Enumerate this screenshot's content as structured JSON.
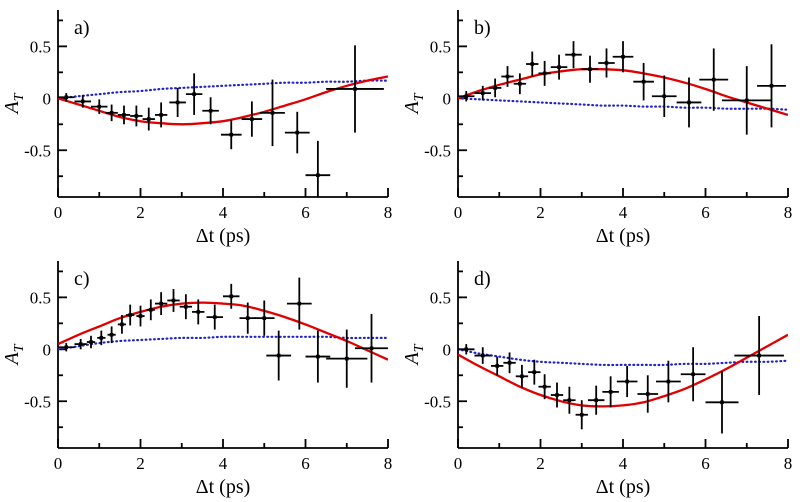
{
  "chart_data": {
    "type": "scatter",
    "title": "",
    "xlabel": "Δt (ps)",
    "ylabel_main": "A",
    "ylabel_sub": "T",
    "xlim": [
      0,
      8
    ],
    "ylim": [
      -0.95,
      0.85
    ],
    "grid": false,
    "legend": "none",
    "xticks": {
      "major": [
        0,
        2,
        4,
        6,
        8
      ],
      "minor": [
        1,
        3,
        5,
        7
      ],
      "labels": [
        "0",
        "2",
        "4",
        "6",
        "8"
      ]
    },
    "yticks": {
      "major": [
        -0.5,
        0,
        0.5
      ],
      "minor": [
        -0.75,
        -0.25,
        0.25,
        0.75
      ],
      "labels": [
        "-0.5",
        "0",
        "0.5"
      ]
    },
    "colors": {
      "data": "#000000",
      "fit": "#e00000",
      "reference": "#2222cc"
    },
    "curve_x_start": 0,
    "curve_x_step": 0.5,
    "panels": [
      {
        "id": "a",
        "label": "a)",
        "points": [
          [
            0.2,
            0.01,
            0.2,
            0.04
          ],
          [
            0.6,
            -0.03,
            0.2,
            0.06
          ],
          [
            1.0,
            -0.08,
            0.2,
            0.07
          ],
          [
            1.3,
            -0.14,
            0.15,
            0.08
          ],
          [
            1.6,
            -0.16,
            0.15,
            0.09
          ],
          [
            1.9,
            -0.17,
            0.15,
            0.1
          ],
          [
            2.2,
            -0.2,
            0.15,
            0.11
          ],
          [
            2.5,
            -0.16,
            0.15,
            0.12
          ],
          [
            2.9,
            -0.04,
            0.2,
            0.14
          ],
          [
            3.3,
            0.04,
            0.2,
            0.2
          ],
          [
            3.7,
            -0.12,
            0.2,
            0.13
          ],
          [
            4.2,
            -0.35,
            0.25,
            0.14
          ],
          [
            4.7,
            -0.2,
            0.25,
            0.17
          ],
          [
            5.2,
            -0.14,
            0.3,
            0.32
          ],
          [
            5.8,
            -0.33,
            0.3,
            0.2
          ],
          [
            6.3,
            -0.74,
            0.3,
            0.33
          ],
          [
            7.2,
            0.09,
            0.7,
            0.42
          ]
        ],
        "fit_curve": [
          0,
          -0.06,
          -0.12,
          -0.18,
          -0.22,
          -0.24,
          -0.25,
          -0.24,
          -0.22,
          -0.18,
          -0.13,
          -0.07,
          -0.01,
          0.06,
          0.12,
          0.17,
          0.21
        ],
        "reference_curve": [
          0,
          0.02,
          0.04,
          0.06,
          0.07,
          0.09,
          0.1,
          0.11,
          0.12,
          0.13,
          0.14,
          0.15,
          0.15,
          0.16,
          0.16,
          0.17,
          0.17
        ]
      },
      {
        "id": "b",
        "label": "b)",
        "points": [
          [
            0.2,
            0.02,
            0.2,
            0.05
          ],
          [
            0.6,
            0.05,
            0.2,
            0.07
          ],
          [
            0.9,
            0.1,
            0.15,
            0.09
          ],
          [
            1.2,
            0.21,
            0.15,
            0.1
          ],
          [
            1.5,
            0.14,
            0.15,
            0.1
          ],
          [
            1.8,
            0.33,
            0.15,
            0.12
          ],
          [
            2.1,
            0.24,
            0.15,
            0.12
          ],
          [
            2.45,
            0.3,
            0.2,
            0.12
          ],
          [
            2.8,
            0.42,
            0.2,
            0.13
          ],
          [
            3.2,
            0.28,
            0.2,
            0.13
          ],
          [
            3.6,
            0.34,
            0.2,
            0.14
          ],
          [
            4.0,
            0.4,
            0.25,
            0.15
          ],
          [
            4.5,
            0.16,
            0.25,
            0.18
          ],
          [
            5.0,
            0.02,
            0.3,
            0.2
          ],
          [
            5.6,
            -0.04,
            0.3,
            0.24
          ],
          [
            6.2,
            0.18,
            0.35,
            0.3
          ],
          [
            7.0,
            -0.02,
            0.6,
            0.33
          ],
          [
            7.6,
            0.12,
            0.35,
            0.4
          ]
        ],
        "fit_curve": [
          0,
          0.07,
          0.13,
          0.18,
          0.23,
          0.26,
          0.28,
          0.28,
          0.27,
          0.24,
          0.2,
          0.15,
          0.09,
          0.02,
          -0.04,
          -0.1,
          -0.16
        ],
        "reference_curve": [
          0,
          -0.01,
          -0.02,
          -0.03,
          -0.04,
          -0.05,
          -0.06,
          -0.07,
          -0.07,
          -0.08,
          -0.08,
          -0.09,
          -0.09,
          -0.1,
          -0.1,
          -0.1,
          -0.11
        ]
      },
      {
        "id": "c",
        "label": "c)",
        "points": [
          [
            0.2,
            0.02,
            0.2,
            0.04
          ],
          [
            0.55,
            0.05,
            0.15,
            0.05
          ],
          [
            0.8,
            0.07,
            0.1,
            0.06
          ],
          [
            1.05,
            0.11,
            0.1,
            0.07
          ],
          [
            1.3,
            0.14,
            0.1,
            0.08
          ],
          [
            1.55,
            0.24,
            0.1,
            0.09
          ],
          [
            1.75,
            0.33,
            0.1,
            0.1
          ],
          [
            2.0,
            0.32,
            0.1,
            0.1
          ],
          [
            2.25,
            0.38,
            0.1,
            0.1
          ],
          [
            2.5,
            0.44,
            0.15,
            0.11
          ],
          [
            2.8,
            0.47,
            0.15,
            0.11
          ],
          [
            3.1,
            0.41,
            0.15,
            0.12
          ],
          [
            3.4,
            0.36,
            0.15,
            0.12
          ],
          [
            3.8,
            0.31,
            0.2,
            0.12
          ],
          [
            4.2,
            0.51,
            0.2,
            0.12
          ],
          [
            4.6,
            0.3,
            0.2,
            0.15
          ],
          [
            5.0,
            0.3,
            0.25,
            0.17
          ],
          [
            5.35,
            -0.06,
            0.3,
            0.24
          ],
          [
            5.85,
            0.44,
            0.3,
            0.25
          ],
          [
            6.3,
            -0.07,
            0.3,
            0.25
          ],
          [
            7.0,
            -0.09,
            0.5,
            0.28
          ],
          [
            7.6,
            0.01,
            0.4,
            0.33
          ]
        ],
        "fit_curve": [
          0.05,
          0.14,
          0.22,
          0.3,
          0.36,
          0.41,
          0.44,
          0.45,
          0.44,
          0.42,
          0.37,
          0.31,
          0.24,
          0.16,
          0.08,
          -0.01,
          -0.1
        ],
        "reference_curve": [
          0,
          0.03,
          0.06,
          0.08,
          0.09,
          0.1,
          0.11,
          0.11,
          0.12,
          0.12,
          0.12,
          0.12,
          0.12,
          0.12,
          0.11,
          0.11,
          0.11
        ]
      },
      {
        "id": "d",
        "label": "d)",
        "points": [
          [
            0.2,
            0.0,
            0.2,
            0.05
          ],
          [
            0.6,
            -0.06,
            0.2,
            0.08
          ],
          [
            0.95,
            -0.16,
            0.15,
            0.09
          ],
          [
            1.25,
            -0.13,
            0.15,
            0.1
          ],
          [
            1.55,
            -0.26,
            0.15,
            0.11
          ],
          [
            1.85,
            -0.22,
            0.15,
            0.12
          ],
          [
            2.1,
            -0.36,
            0.15,
            0.12
          ],
          [
            2.4,
            -0.44,
            0.15,
            0.12
          ],
          [
            2.7,
            -0.49,
            0.15,
            0.13
          ],
          [
            3.0,
            -0.63,
            0.15,
            0.14
          ],
          [
            3.35,
            -0.49,
            0.2,
            0.14
          ],
          [
            3.7,
            -0.41,
            0.2,
            0.15
          ],
          [
            4.1,
            -0.31,
            0.25,
            0.15
          ],
          [
            4.6,
            -0.43,
            0.25,
            0.18
          ],
          [
            5.1,
            -0.31,
            0.3,
            0.2
          ],
          [
            5.7,
            -0.24,
            0.3,
            0.26
          ],
          [
            6.4,
            -0.51,
            0.4,
            0.3
          ],
          [
            7.3,
            -0.06,
            0.6,
            0.38
          ]
        ],
        "fit_curve": [
          -0.05,
          -0.16,
          -0.26,
          -0.36,
          -0.44,
          -0.5,
          -0.54,
          -0.55,
          -0.54,
          -0.51,
          -0.45,
          -0.38,
          -0.29,
          -0.19,
          -0.08,
          0.03,
          0.14
        ],
        "reference_curve": [
          0,
          -0.04,
          -0.07,
          -0.1,
          -0.12,
          -0.13,
          -0.14,
          -0.15,
          -0.15,
          -0.15,
          -0.15,
          -0.14,
          -0.14,
          -0.13,
          -0.12,
          -0.12,
          -0.11
        ]
      }
    ]
  }
}
